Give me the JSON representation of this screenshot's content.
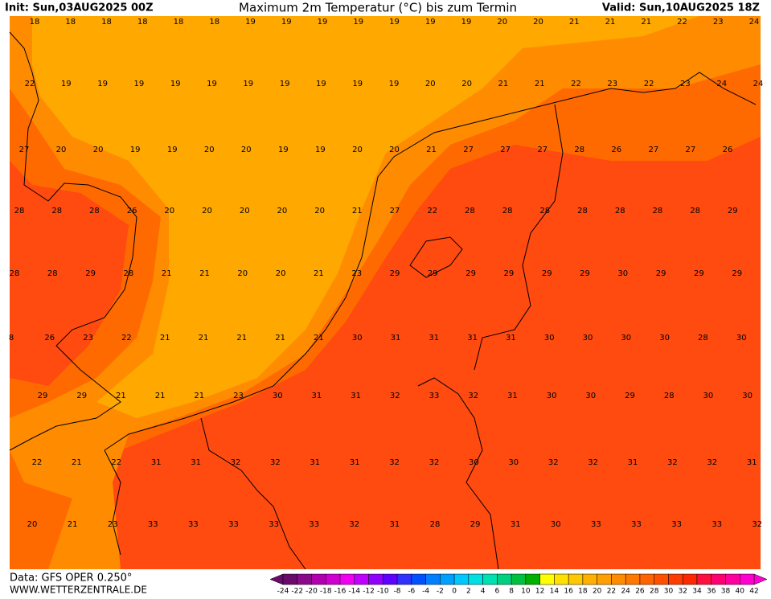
{
  "header": {
    "init": "Init: Sun,03AUG2025 00Z",
    "title": "Maximum 2m Temperatur (°C) bis zum Termin",
    "valid": "Valid: Sun,10AUG2025 18Z"
  },
  "map_labels": [
    [
      "18",
      "18",
      "18",
      "18",
      "18",
      "18",
      "19",
      "19",
      "19",
      "19",
      "19",
      "19",
      "19",
      "20",
      "20",
      "21",
      "21",
      "21",
      "22",
      "23",
      "24"
    ],
    [
      "22",
      "19",
      "19",
      "19",
      "19",
      "19",
      "19",
      "19",
      "19",
      "19",
      "19",
      "20",
      "20",
      "21",
      "21",
      "22",
      "23",
      "22",
      "23",
      "24",
      "24"
    ],
    [
      "27",
      "20",
      "20",
      "19",
      "19",
      "20",
      "20",
      "19",
      "19",
      "20",
      "20",
      "21",
      "27",
      "27",
      "27",
      "28",
      "26",
      "27",
      "27",
      "26"
    ],
    [
      "28",
      "28",
      "28",
      "26",
      "20",
      "20",
      "20",
      "20",
      "20",
      "21",
      "27",
      "22",
      "28",
      "28",
      "28",
      "28",
      "28",
      "28",
      "28",
      "29"
    ],
    [
      "28",
      "28",
      "29",
      "28",
      "21",
      "21",
      "20",
      "20",
      "21",
      "23",
      "29",
      "29",
      "29",
      "29",
      "29",
      "29",
      "30",
      "29",
      "29",
      "29"
    ],
    [
      "8",
      "26",
      "23",
      "22",
      "21",
      "21",
      "21",
      "21",
      "21",
      "30",
      "31",
      "31",
      "31",
      "31",
      "30",
      "30",
      "30",
      "30",
      "28",
      "30"
    ],
    [
      "29",
      "29",
      "21",
      "21",
      "21",
      "23",
      "30",
      "31",
      "31",
      "32",
      "33",
      "32",
      "31",
      "30",
      "30",
      "29",
      "28",
      "30",
      "30"
    ],
    [
      "22",
      "21",
      "22",
      "31",
      "31",
      "32",
      "32",
      "31",
      "31",
      "32",
      "32",
      "30",
      "30",
      "32",
      "32",
      "31",
      "32",
      "32",
      "31"
    ],
    [
      "20",
      "21",
      "23",
      "33",
      "33",
      "33",
      "33",
      "33",
      "32",
      "31",
      "28",
      "29",
      "31",
      "30",
      "33",
      "33",
      "33",
      "33",
      "32"
    ]
  ],
  "colorbar": {
    "ticks": [
      -24,
      -22,
      -20,
      -18,
      -16,
      -14,
      -12,
      -10,
      -8,
      -6,
      -4,
      -2,
      0,
      2,
      4,
      6,
      8,
      10,
      12,
      14,
      16,
      18,
      20,
      22,
      24,
      26,
      28,
      30,
      32,
      34,
      36,
      38,
      40,
      42
    ],
    "colors": [
      "#6a0a6a",
      "#8a0a8a",
      "#b000b0",
      "#d000d0",
      "#f000f0",
      "#c000ff",
      "#9000ff",
      "#6000ff",
      "#3030ff",
      "#0050ff",
      "#0080ff",
      "#00a0ff",
      "#00c8ff",
      "#00e0e0",
      "#00e0b0",
      "#00d080",
      "#00c040",
      "#00b000",
      "#ffff00",
      "#ffe000",
      "#ffc800",
      "#ffb000",
      "#ffa000",
      "#ff8c00",
      "#ff7800",
      "#ff6400",
      "#ff5000",
      "#ff3c00",
      "#ff2800",
      "#ff1040",
      "#ff0070",
      "#ff00a0",
      "#ff00d0"
    ]
  },
  "footer": {
    "data": "Data: GFS OPER 0.250°",
    "site": "WWW.WETTERZENTRALE.DE"
  }
}
